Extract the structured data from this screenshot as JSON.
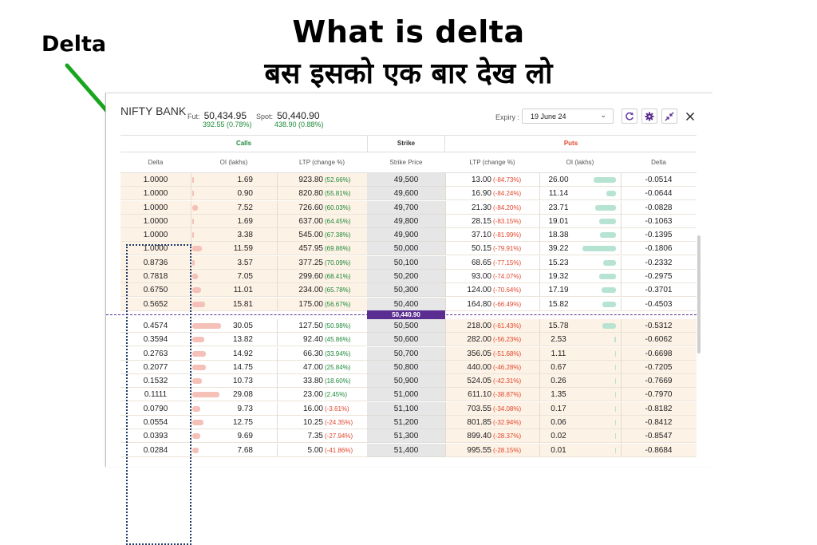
{
  "titles": {
    "line1": "What is delta",
    "line2": "बस इसको एक बार देख लो",
    "callout": "Delta"
  },
  "header": {
    "symbol": "NIFTY BANK",
    "fut_label": "Fut:",
    "fut_value": "50,434.95",
    "fut_change": "392.55 (0.78%)",
    "spot_label": "Spot:",
    "spot_value": "50,440.90",
    "spot_change": "438.90 (0.88%)",
    "expiry_label": "Expiry :",
    "expiry_value": "19 June 24",
    "icons": [
      "refresh-icon",
      "settings-icon",
      "collapse-icon",
      "close-icon"
    ]
  },
  "table": {
    "groups": {
      "calls": "Calls",
      "strike": "Strike",
      "puts": "Puts"
    },
    "columns": [
      "Delta",
      "OI (lakhs)",
      "LTP (change %)",
      "Strike Price",
      "LTP (change %)",
      "OI (lakhs)",
      "Delta"
    ],
    "spot_marker": "50,440.90",
    "colors": {
      "itm": "#fdf2e6",
      "call_bar": "#f4c0b8",
      "put_bar": "#b6e3d2",
      "up": "#1e8a3a",
      "down": "#e0462c",
      "spot": "#5a2d91"
    },
    "rows": [
      {
        "cd": "1.0000",
        "coi": "1.69",
        "cl": "923.80",
        "cc": "(52.66%)",
        "s": "49,500",
        "pl": "13.00",
        "pc": "(-84.73%)",
        "poi": "26.00",
        "pd": "-0.0514",
        "cbar": 0.02,
        "pbar": 0.67
      },
      {
        "cd": "1.0000",
        "coi": "0.90",
        "cl": "820.80",
        "cc": "(55.81%)",
        "s": "49,600",
        "pl": "16.90",
        "pc": "(-84.24%)",
        "poi": "11.14",
        "pd": "-0.0644",
        "cbar": 0.0,
        "pbar": 0.29
      },
      {
        "cd": "1.0000",
        "coi": "7.52",
        "cl": "726.60",
        "cc": "(60.03%)",
        "s": "49,700",
        "pl": "21.30",
        "pc": "(-84.20%)",
        "poi": "23.71",
        "pd": "-0.0828",
        "cbar": 0.19,
        "pbar": 0.61
      },
      {
        "cd": "1.0000",
        "coi": "1.69",
        "cl": "637.00",
        "cc": "(64.45%)",
        "s": "49,800",
        "pl": "28.15",
        "pc": "(-83.15%)",
        "poi": "19.01",
        "pd": "-0.1063",
        "cbar": 0.02,
        "pbar": 0.49
      },
      {
        "cd": "1.0000",
        "coi": "3.38",
        "cl": "545.00",
        "cc": "(67.38%)",
        "s": "49,900",
        "pl": "37.10",
        "pc": "(-81.99%)",
        "poi": "18.38",
        "pd": "-0.1395",
        "cbar": 0.06,
        "pbar": 0.47
      },
      {
        "cd": "1.0000",
        "coi": "11.59",
        "cl": "457.95",
        "cc": "(69.86%)",
        "s": "50,000",
        "pl": "50.15",
        "pc": "(-79.91%)",
        "poi": "39.22",
        "pd": "-0.1806",
        "cbar": 0.33,
        "pbar": 1.0
      },
      {
        "cd": "0.8736",
        "coi": "3.57",
        "cl": "377.25",
        "cc": "(70.09%)",
        "s": "50,100",
        "pl": "68.65",
        "pc": "(-77.15%)",
        "poi": "15.23",
        "pd": "-0.2332",
        "cbar": 0.07,
        "pbar": 0.39
      },
      {
        "cd": "0.7818",
        "coi": "7.05",
        "cl": "299.60",
        "cc": "(68.41%)",
        "s": "50,200",
        "pl": "93.00",
        "pc": "(-74.07%)",
        "poi": "19.32",
        "pd": "-0.2975",
        "cbar": 0.19,
        "pbar": 0.49
      },
      {
        "cd": "0.6750",
        "coi": "11.01",
        "cl": "234.00",
        "cc": "(65.78%)",
        "s": "50,300",
        "pl": "124.00",
        "pc": "(-70.64%)",
        "poi": "17.19",
        "pd": "-0.3701",
        "cbar": 0.31,
        "pbar": 0.44
      },
      {
        "cd": "0.5652",
        "coi": "15.81",
        "cl": "175.00",
        "cc": "(56.67%)",
        "s": "50,400",
        "pl": "164.80",
        "pc": "(-66.49%)",
        "poi": "15.82",
        "pd": "-0.4503",
        "cbar": 0.45,
        "pbar": 0.4
      },
      {
        "cd": "0.4574",
        "coi": "30.05",
        "cl": "127.50",
        "cc": "(50.98%)",
        "s": "50,500",
        "pl": "218.00",
        "pc": "(-61.43%)",
        "poi": "15.78",
        "pd": "-0.5312",
        "cbar": 1.0,
        "pbar": 0.4
      },
      {
        "cd": "0.3594",
        "coi": "13.82",
        "cl": "92.40",
        "cc": "(45.86%)",
        "s": "50,600",
        "pl": "282.00",
        "pc": "(-56.23%)",
        "poi": "2.53",
        "pd": "-0.6062",
        "cbar": 0.43,
        "pbar": 0.04
      },
      {
        "cd": "0.2763",
        "coi": "14.92",
        "cl": "66.30",
        "cc": "(33.94%)",
        "s": "50,700",
        "pl": "356.05",
        "pc": "(-51.68%)",
        "poi": "1.11",
        "pd": "-0.6698",
        "cbar": 0.47,
        "pbar": 0.02
      },
      {
        "cd": "0.2077",
        "coi": "14.75",
        "cl": "47.00",
        "cc": "(25.84%)",
        "s": "50,800",
        "pl": "440.00",
        "pc": "(-46.28%)",
        "poi": "0.67",
        "pd": "-0.7205",
        "cbar": 0.46,
        "pbar": 0.0
      },
      {
        "cd": "0.1532",
        "coi": "10.73",
        "cl": "33.80",
        "cc": "(18.60%)",
        "s": "50,900",
        "pl": "524.05",
        "pc": "(-42.31%)",
        "poi": "0.26",
        "pd": "-0.7669",
        "cbar": 0.33,
        "pbar": 0.0
      },
      {
        "cd": "0.1111",
        "coi": "29.08",
        "cl": "23.00",
        "cc": "(2.45%)",
        "s": "51,000",
        "pl": "611.10",
        "pc": "(-38.87%)",
        "poi": "1.35",
        "pd": "-0.7970",
        "cbar": 0.95,
        "pbar": 0.0
      },
      {
        "cd": "0.0790",
        "coi": "9.73",
        "cl": "16.00",
        "cc": "(-3.61%)",
        "s": "51,100",
        "pl": "703.55",
        "pc": "(-34.08%)",
        "poi": "0.17",
        "pd": "-0.8182",
        "cbar": 0.29,
        "pbar": 0.0
      },
      {
        "cd": "0.0554",
        "coi": "12.75",
        "cl": "10.25",
        "cc": "(-24.35%)",
        "s": "51,200",
        "pl": "801.85",
        "pc": "(-32.94%)",
        "poi": "0.06",
        "pd": "-0.8412",
        "cbar": 0.39,
        "pbar": 0.0
      },
      {
        "cd": "0.0393",
        "coi": "9.69",
        "cl": "7.35",
        "cc": "(-27.94%)",
        "s": "51,300",
        "pl": "899.40",
        "pc": "(-28.37%)",
        "poi": "0.02",
        "pd": "-0.8547",
        "cbar": 0.28,
        "pbar": 0.0
      },
      {
        "cd": "0.0284",
        "coi": "7.68",
        "cl": "5.00",
        "cc": "(-41.86%)",
        "s": "51,400",
        "pl": "995.55",
        "pc": "(-28.15%)",
        "poi": "0.01",
        "pd": "-0.8684",
        "cbar": 0.22,
        "pbar": 0.0
      }
    ]
  }
}
